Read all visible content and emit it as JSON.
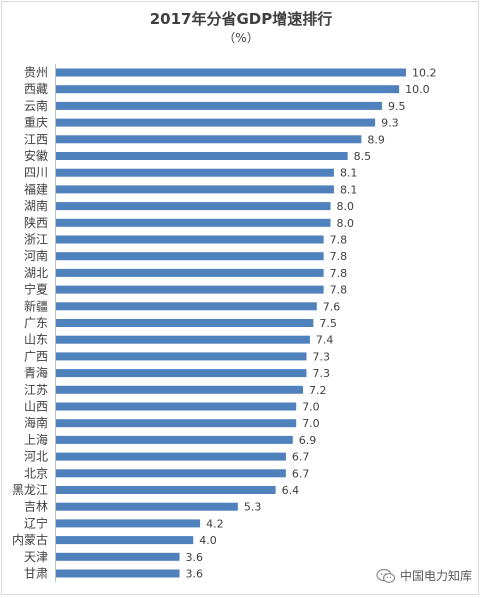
{
  "chart_data": {
    "type": "bar",
    "orientation": "horizontal",
    "title": "2017年分省GDP增速排行",
    "subtitle": "（%）",
    "categories": [
      "贵州",
      "西藏",
      "云南",
      "重庆",
      "江西",
      "安徽",
      "四川",
      "福建",
      "湖南",
      "陕西",
      "浙江",
      "河南",
      "湖北",
      "宁夏",
      "新疆",
      "广东",
      "山东",
      "广西",
      "青海",
      "江苏",
      "山西",
      "海南",
      "上海",
      "河北",
      "北京",
      "黑龙江",
      "吉林",
      "辽宁",
      "内蒙古",
      "天津",
      "甘肃"
    ],
    "values": [
      10.2,
      10.0,
      9.5,
      9.3,
      8.9,
      8.5,
      8.1,
      8.1,
      8.0,
      8.0,
      7.8,
      7.8,
      7.8,
      7.8,
      7.6,
      7.5,
      7.4,
      7.3,
      7.3,
      7.2,
      7.0,
      7.0,
      6.9,
      6.7,
      6.7,
      6.4,
      5.3,
      4.2,
      4.0,
      3.6,
      3.6
    ],
    "value_labels": [
      "10.2",
      "10.0",
      "9.5",
      "9.3",
      "8.9",
      "8.5",
      "8.1",
      "8.1",
      "8.0",
      "8.0",
      "7.8",
      "7.8",
      "7.8",
      "7.8",
      "7.6",
      "7.5",
      "7.4",
      "7.3",
      "7.3",
      "7.2",
      "7.0",
      "7.0",
      "6.9",
      "6.7",
      "6.7",
      "6.4",
      "5.3",
      "4.2",
      "4.0",
      "3.6",
      "3.6"
    ],
    "xlim": [
      0,
      10.2
    ],
    "grid": false,
    "legend": "none",
    "bar_color": "#4f81bd"
  },
  "watermark": {
    "text": "中国电力知库",
    "icon": "wechat-icon"
  }
}
